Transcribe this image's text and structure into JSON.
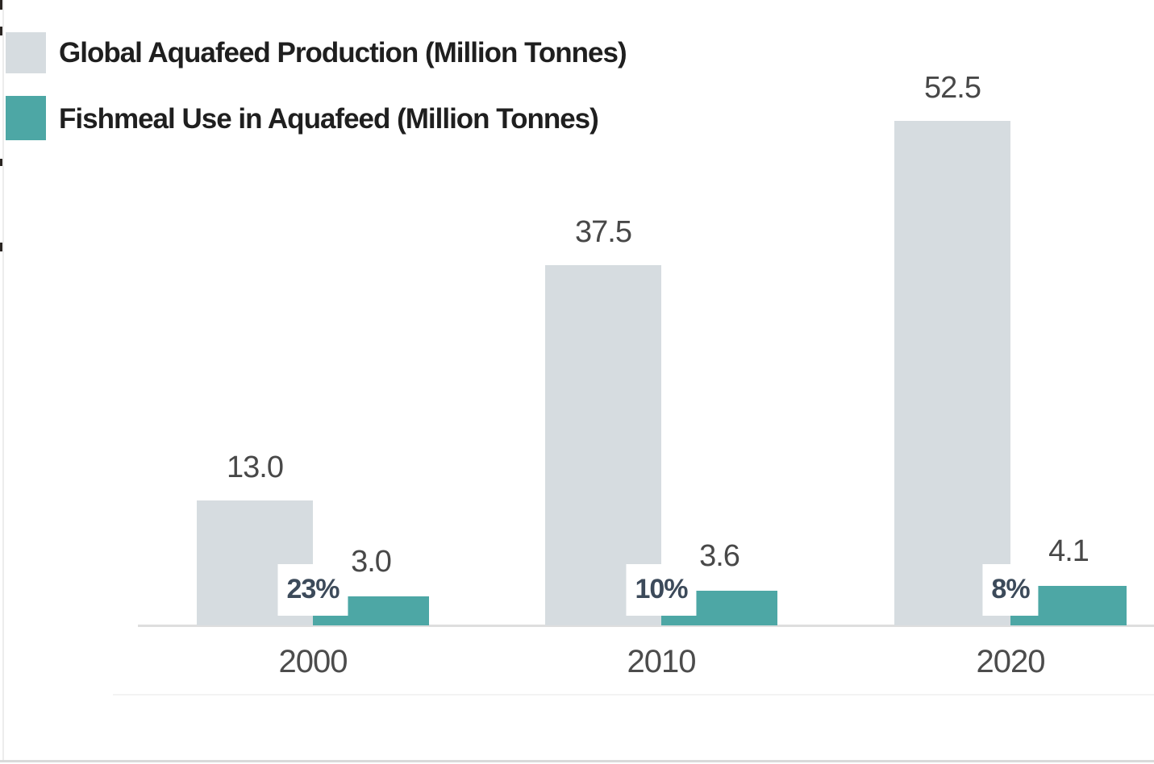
{
  "chart_data": {
    "type": "bar",
    "categories": [
      "2000",
      "2010",
      "2020"
    ],
    "series": [
      {
        "name": "Global Aquafeed Production (Million Tonnes)",
        "values": [
          13.0,
          37.5,
          52.5
        ],
        "labels": [
          "13.0",
          "37.5",
          "52.5"
        ],
        "color": "#d6dce0"
      },
      {
        "name": "Fishmeal Use in Aquafeed (Million Tonnes)",
        "values": [
          3.0,
          3.6,
          4.1
        ],
        "labels": [
          "3.0",
          "3.6",
          "4.1"
        ],
        "color": "#4da7a5"
      }
    ],
    "percent_labels": [
      "23%",
      "10%",
      "8%"
    ],
    "ylim": [
      0,
      55
    ],
    "grid": false,
    "legend_position": "top-left",
    "xlabel": "",
    "ylabel": ""
  },
  "colors": {
    "axis_line": "#dedede",
    "value_label": "#484848",
    "year_label": "#4c4c4c",
    "percent_label": "#3c4a5a",
    "percent_box_bg": "#ffffff"
  }
}
